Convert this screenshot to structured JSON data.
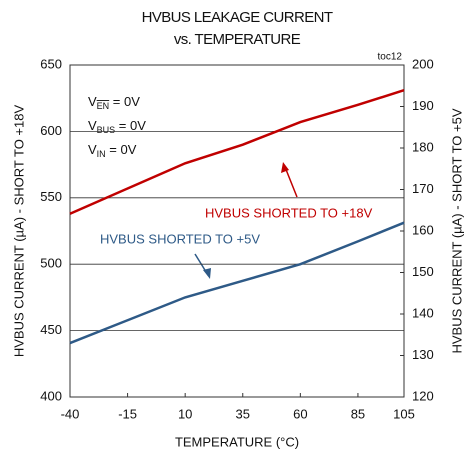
{
  "chart_data": {
    "type": "line",
    "title": "HVBUS LEAKAGE CURRENT",
    "subtitle": "vs. TEMPERATURE",
    "figure_id": "toc12",
    "x_label": "TEMPERATURE (°C)",
    "y_label": "HVBUS CURRENT (µA) - SHORT TO +18V",
    "y2_label": "HVBUS CURRENT (µA) - SHORT TO +5V",
    "x": [
      -40,
      -15,
      10,
      35,
      60,
      85,
      105
    ],
    "xlim": [
      -40,
      105
    ],
    "xticks": [
      -40,
      -15,
      10,
      35,
      60,
      85,
      105
    ],
    "ylim": [
      400,
      650
    ],
    "yticks": [
      400,
      450,
      500,
      550,
      600,
      650
    ],
    "y2lim": [
      120,
      200
    ],
    "y2ticks": [
      120,
      130,
      140,
      150,
      160,
      170,
      180,
      190,
      200
    ],
    "grid": true,
    "series": [
      {
        "name": "HVBUS SHORTED TO +18V",
        "color": "#c00000",
        "values": [
          538,
          557,
          576,
          590,
          607,
          620,
          631
        ]
      },
      {
        "name": "HVBUS SHORTED TO +5V",
        "color": "#2e5a87",
        "axis": "y2",
        "values": [
          133,
          138.5,
          144,
          148,
          152,
          157.5,
          162
        ]
      }
    ],
    "conditions": [
      {
        "symbol": "V",
        "subscript": "EN",
        "text": " = 0V"
      },
      {
        "symbol": "V",
        "subscript": "BUS",
        "text": " = 0V"
      },
      {
        "symbol": "V",
        "subscript": "IN",
        "text": " = 0V"
      }
    ]
  }
}
